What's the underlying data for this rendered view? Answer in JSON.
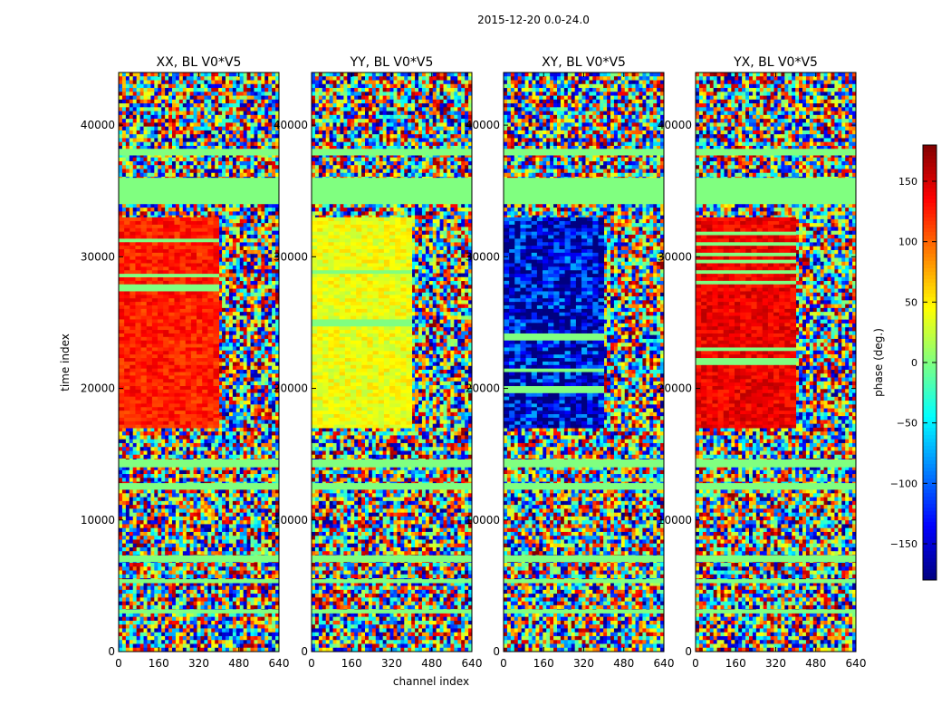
{
  "figure": {
    "suptitle": "2015-12-20 0.0-24.0",
    "ylabel": "time index",
    "xlabel": "channel index"
  },
  "chart_data": [
    {
      "type": "heatmap",
      "title": "XX, BL V0*V5",
      "xlim": [
        0,
        640
      ],
      "ylim": [
        0,
        44000
      ],
      "x_ticks": [
        "0",
        "160",
        "320",
        "480",
        "640"
      ],
      "y_ticks": [
        "0",
        "10000",
        "20000",
        "30000",
        "40000"
      ],
      "z_range": [
        -180,
        180
      ],
      "dominant_phase_deg": 125,
      "note_regions": [
        {
          "y": [
            17000,
            33000
          ],
          "x": [
            0,
            400
          ],
          "phase_deg": 125
        }
      ]
    },
    {
      "type": "heatmap",
      "title": "YY, BL V0*V5",
      "xlim": [
        0,
        640
      ],
      "ylim": [
        0,
        44000
      ],
      "x_ticks": [
        "0",
        "160",
        "320",
        "480",
        "640"
      ],
      "y_ticks": [
        "0",
        "10000",
        "20000",
        "30000",
        "40000"
      ],
      "z_range": [
        -180,
        180
      ],
      "dominant_phase_deg": 40
    },
    {
      "type": "heatmap",
      "title": "XY, BL V0*V5",
      "xlim": [
        0,
        640
      ],
      "ylim": [
        0,
        44000
      ],
      "x_ticks": [
        "0",
        "160",
        "320",
        "480",
        "640"
      ],
      "y_ticks": [
        "0",
        "10000",
        "20000",
        "30000",
        "40000"
      ],
      "z_range": [
        -180,
        180
      ],
      "dominant_phase_deg": -150
    },
    {
      "type": "heatmap",
      "title": "YX, BL V0*V5",
      "xlim": [
        0,
        640
      ],
      "ylim": [
        0,
        44000
      ],
      "x_ticks": [
        "0",
        "160",
        "320",
        "480",
        "640"
      ],
      "y_ticks": [
        "0",
        "10000",
        "20000",
        "30000",
        "40000"
      ],
      "z_range": [
        -180,
        180
      ],
      "dominant_phase_deg": 140
    }
  ],
  "colorbar": {
    "label": "phase (deg.)",
    "range": [
      -180,
      180
    ],
    "ticks": [
      {
        "value": 150,
        "label": "150"
      },
      {
        "value": 100,
        "label": "100"
      },
      {
        "value": 50,
        "label": "50"
      },
      {
        "value": 0,
        "label": "0"
      },
      {
        "value": -50,
        "label": "−50"
      },
      {
        "value": -100,
        "label": "−100"
      },
      {
        "value": -150,
        "label": "−150"
      }
    ],
    "colormap": "jet"
  }
}
